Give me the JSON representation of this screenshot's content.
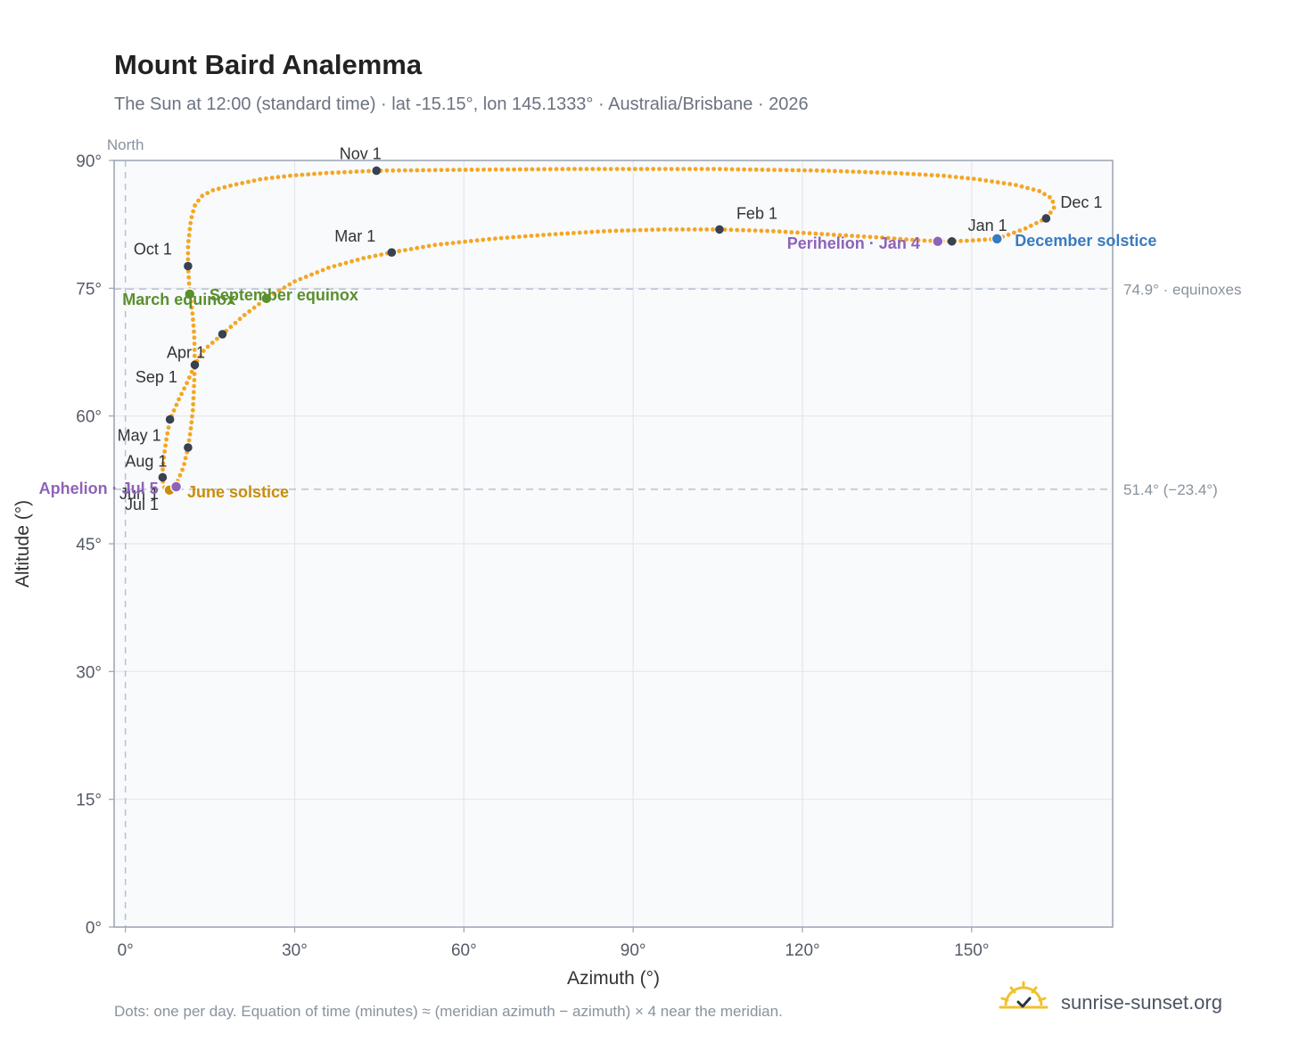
{
  "chart_data": {
    "type": "scatter",
    "title": "Mount Baird Analemma",
    "subtitle": "The Sun at 12:00 (standard time) · lat -15.15°, lon 145.1333° · Australia/Brisbane · 2026",
    "xlabel": "Azimuth (°)",
    "ylabel": "Altitude (°)",
    "xlim": [
      -2,
      175
    ],
    "ylim": [
      0,
      90
    ],
    "x_ticks": [
      0,
      30,
      60,
      90,
      120,
      150
    ],
    "x_tick_labels": [
      "0°",
      "30°",
      "60°",
      "90°",
      "120°",
      "150°"
    ],
    "y_ticks": [
      0,
      15,
      30,
      45,
      60,
      75,
      90
    ],
    "y_tick_labels": [
      "0°",
      "15°",
      "30°",
      "45°",
      "60°",
      "75°",
      "90°"
    ],
    "grid": true,
    "north_label": "North",
    "reference_lines": [
      {
        "y": 74.9,
        "label": "74.9° · equinoxes"
      },
      {
        "y": 51.4,
        "label": "51.4° (−23.4°)"
      }
    ],
    "colors": {
      "curve": "#f5a623",
      "month_marker": "#374151",
      "equinox": "#5a8f2e",
      "december_solstice": "#3a7bbf",
      "june_solstice": "#c98d0b",
      "aphelion_perihelion": "#8e63b8"
    },
    "analemma_path": [
      {
        "x": 154.5,
        "y": 80.8
      },
      {
        "x": 159.5,
        "y": 82.0
      },
      {
        "x": 163.2,
        "y": 83.2
      },
      {
        "x": 164.6,
        "y": 84.4
      },
      {
        "x": 164.3,
        "y": 85.5
      },
      {
        "x": 162.0,
        "y": 86.4
      },
      {
        "x": 158.0,
        "y": 87.1
      },
      {
        "x": 151.0,
        "y": 87.8
      },
      {
        "x": 145.0,
        "y": 88.2
      },
      {
        "x": 137.0,
        "y": 88.5
      },
      {
        "x": 124.0,
        "y": 88.8
      },
      {
        "x": 104.0,
        "y": 89.0
      },
      {
        "x": 80.0,
        "y": 89.0
      },
      {
        "x": 59.0,
        "y": 88.9
      },
      {
        "x": 44.5,
        "y": 88.8
      },
      {
        "x": 35.0,
        "y": 88.5
      },
      {
        "x": 29.0,
        "y": 88.2
      },
      {
        "x": 24.0,
        "y": 87.8
      },
      {
        "x": 19.0,
        "y": 87.1
      },
      {
        "x": 15.5,
        "y": 86.5
      },
      {
        "x": 13.5,
        "y": 85.8
      },
      {
        "x": 12.3,
        "y": 84.7
      },
      {
        "x": 11.6,
        "y": 83.0
      },
      {
        "x": 11.1,
        "y": 80.0
      },
      {
        "x": 11.1,
        "y": 77.6
      },
      {
        "x": 11.3,
        "y": 75.5
      },
      {
        "x": 11.5,
        "y": 74.3
      },
      {
        "x": 11.9,
        "y": 72.0
      },
      {
        "x": 12.2,
        "y": 69.5
      },
      {
        "x": 12.3,
        "y": 66.3
      },
      {
        "x": 12.2,
        "y": 64.0
      },
      {
        "x": 12.0,
        "y": 61.0
      },
      {
        "x": 11.6,
        "y": 58.5
      },
      {
        "x": 11.1,
        "y": 56.3
      },
      {
        "x": 10.3,
        "y": 54.0
      },
      {
        "x": 9.2,
        "y": 52.3
      },
      {
        "x": 7.8,
        "y": 51.3
      },
      {
        "x": 6.9,
        "y": 51.6
      },
      {
        "x": 6.5,
        "y": 52.8
      },
      {
        "x": 6.7,
        "y": 54.5
      },
      {
        "x": 7.2,
        "y": 57.0
      },
      {
        "x": 7.9,
        "y": 59.6
      },
      {
        "x": 9.5,
        "y": 62.0
      },
      {
        "x": 11.0,
        "y": 64.0
      },
      {
        "x": 12.3,
        "y": 66.0
      },
      {
        "x": 14.0,
        "y": 67.8
      },
      {
        "x": 17.2,
        "y": 69.6
      },
      {
        "x": 21.0,
        "y": 71.8
      },
      {
        "x": 25.0,
        "y": 73.8
      },
      {
        "x": 30.0,
        "y": 75.8
      },
      {
        "x": 36.0,
        "y": 77.4
      },
      {
        "x": 42.0,
        "y": 78.5
      },
      {
        "x": 47.2,
        "y": 79.2
      },
      {
        "x": 55.0,
        "y": 80.1
      },
      {
        "x": 65.0,
        "y": 80.8
      },
      {
        "x": 75.0,
        "y": 81.3
      },
      {
        "x": 85.0,
        "y": 81.7
      },
      {
        "x": 95.0,
        "y": 81.9
      },
      {
        "x": 105.3,
        "y": 81.9
      },
      {
        "x": 115.0,
        "y": 81.7
      },
      {
        "x": 125.0,
        "y": 81.3
      },
      {
        "x": 135.0,
        "y": 80.9
      },
      {
        "x": 141.0,
        "y": 80.6
      },
      {
        "x": 146.5,
        "y": 80.5
      },
      {
        "x": 150.0,
        "y": 80.6
      },
      {
        "x": 154.5,
        "y": 80.8
      }
    ],
    "month_markers": [
      {
        "label": "Jan 1",
        "x": 146.5,
        "y": 80.5
      },
      {
        "label": "Feb 1",
        "x": 105.3,
        "y": 81.9
      },
      {
        "label": "Mar 1",
        "x": 47.2,
        "y": 79.2
      },
      {
        "label": "Apr 1",
        "x": 12.3,
        "y": 66.0
      },
      {
        "label": "May 1",
        "x": 7.9,
        "y": 59.6
      },
      {
        "label": "Jun 1",
        "x": 7.8,
        "y": 51.3
      },
      {
        "label": "Jul 1",
        "x": 7.8,
        "y": 51.3
      },
      {
        "label": "Aug 1",
        "x": 6.6,
        "y": 52.8
      },
      {
        "label": "Sep 1",
        "x": 11.1,
        "y": 56.3
      },
      {
        "label": "Oct 1",
        "x": 11.1,
        "y": 77.6
      },
      {
        "label": "Nov 1",
        "x": 44.5,
        "y": 88.8
      },
      {
        "label": "Dec 1",
        "x": 163.2,
        "y": 83.2
      }
    ],
    "unlabeled_markers": [
      {
        "x": 17.2,
        "y": 69.6
      }
    ],
    "events": [
      {
        "label": "March equinox",
        "x": 11.4,
        "y": 74.3,
        "color": "#5a8f2e"
      },
      {
        "label": "September equinox",
        "x": 25.0,
        "y": 73.8,
        "color": "#5a8f2e"
      },
      {
        "label": "June solstice",
        "x": 7.8,
        "y": 51.3,
        "color": "#c98d0b"
      },
      {
        "label": "December solstice",
        "x": 154.5,
        "y": 80.8,
        "color": "#3a7bbf"
      },
      {
        "label": "Aphelion · Jul 5",
        "x": 9.0,
        "y": 51.7,
        "color": "#8e63b8"
      },
      {
        "label": "Perihelion · Jan 4",
        "x": 144.0,
        "y": 80.5,
        "color": "#8e63b8"
      }
    ]
  },
  "footer": {
    "note": "Dots: one per day. Equation of time (minutes) ≈ (meridian azimuth − azimuth) × 4 near the meridian.",
    "brand": "sunrise-sunset.org",
    "brand_icon": "sun-check-icon"
  }
}
